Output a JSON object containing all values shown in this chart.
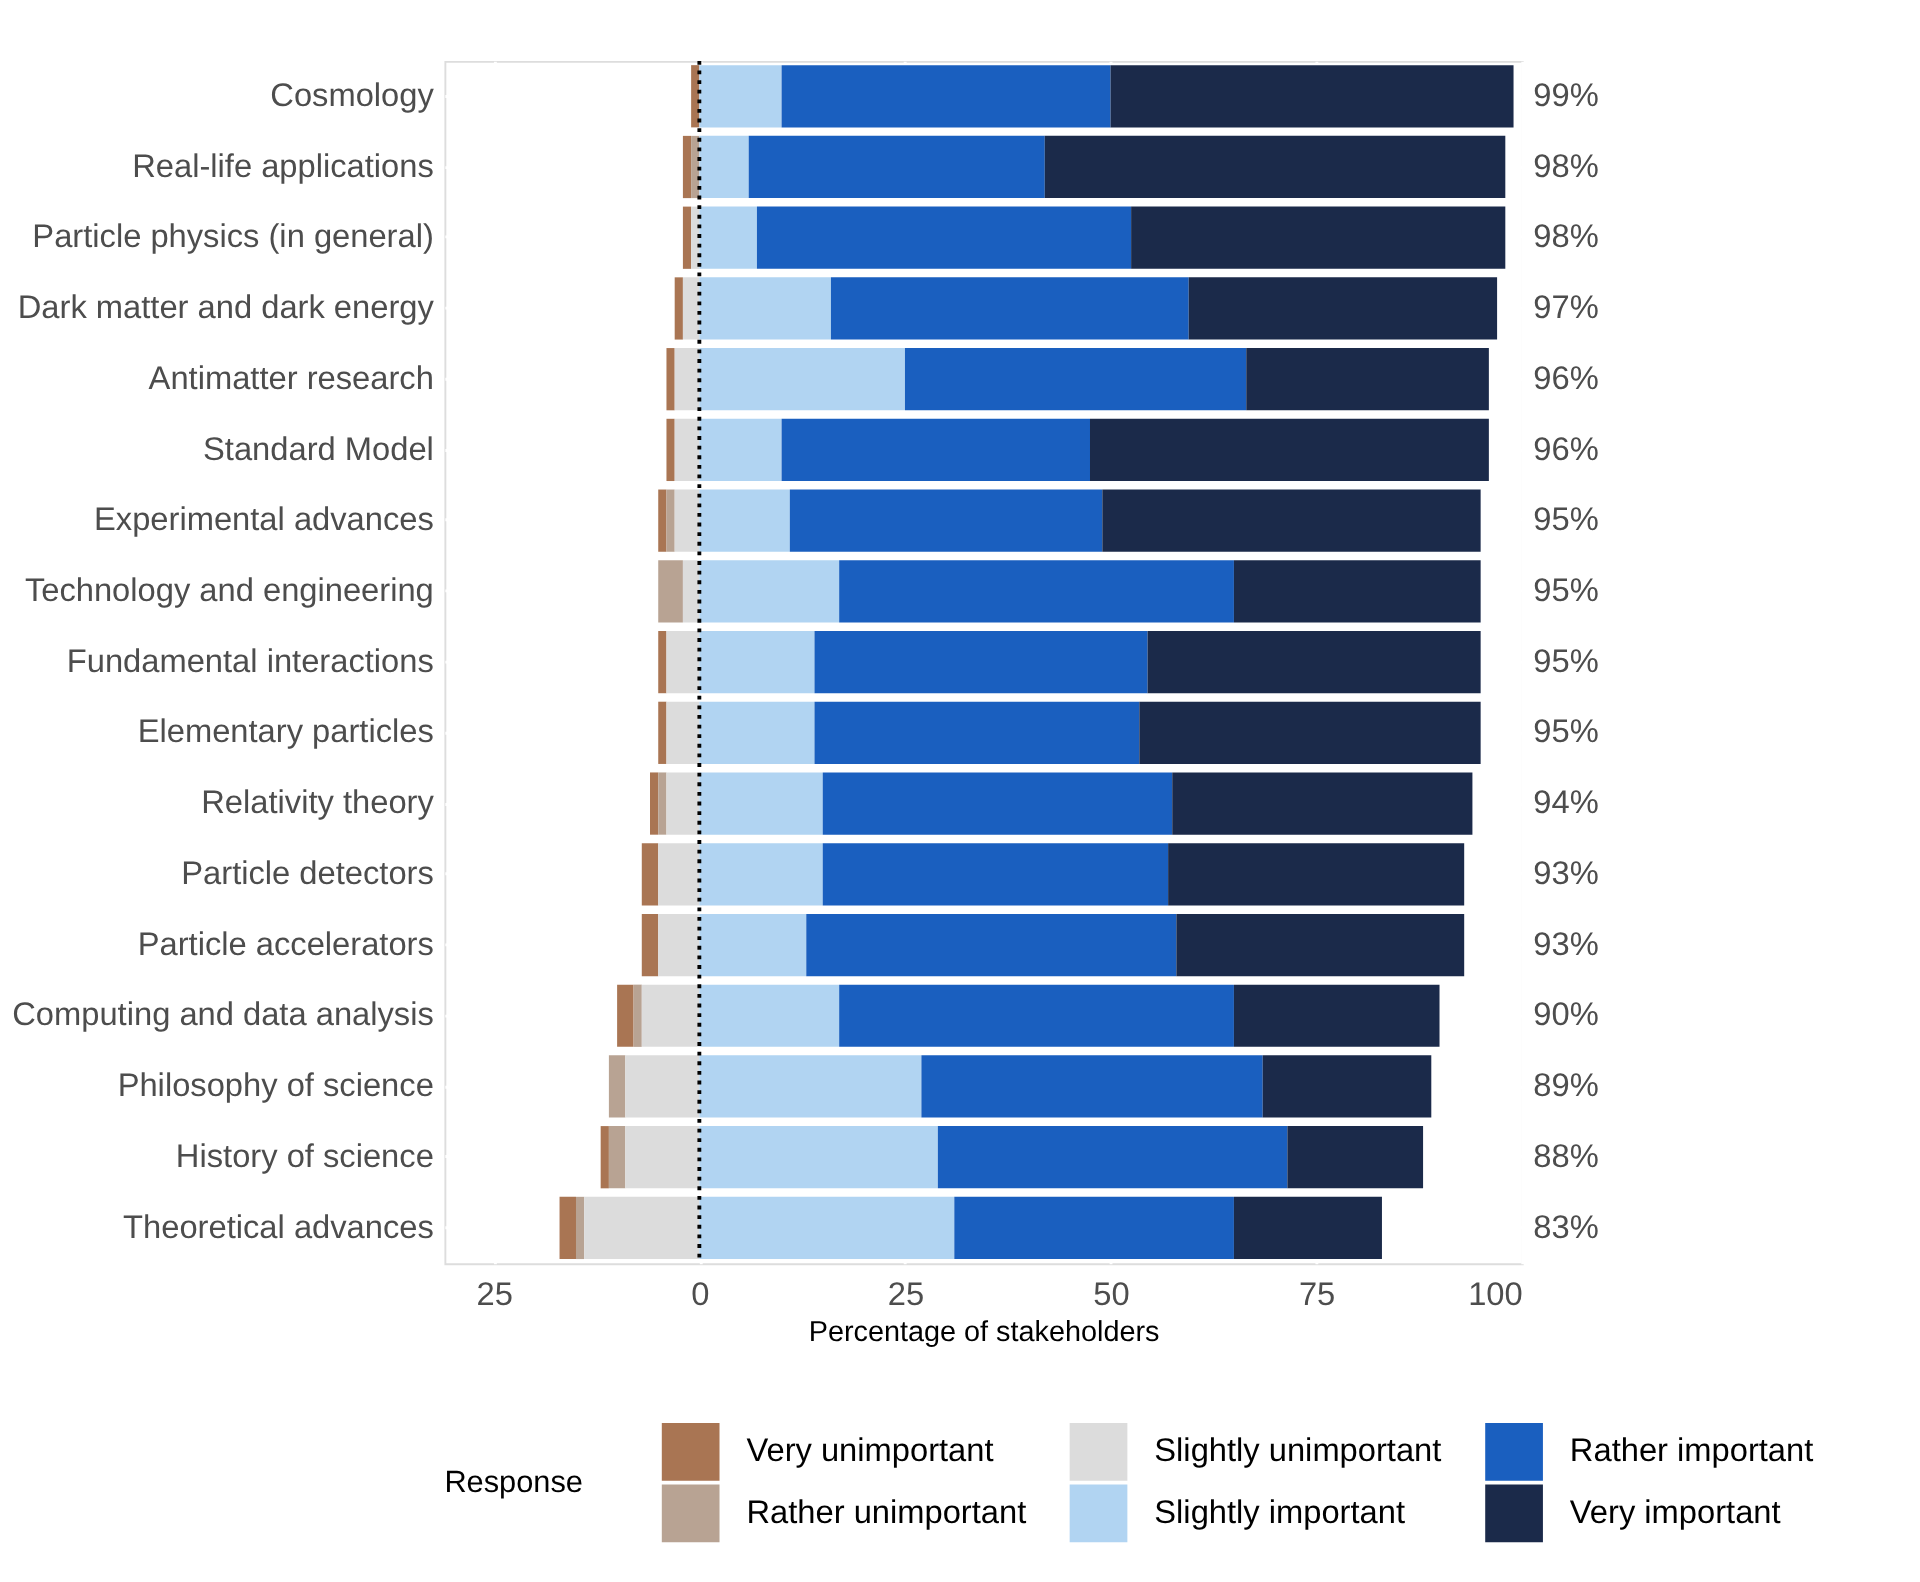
{
  "chart_data": {
    "type": "bar",
    "orientation": "horizontal",
    "stacked": true,
    "categories": [
      "Cosmology",
      "Real-life applications",
      "Particle physics (in general)",
      "Dark matter and dark energy",
      "Antimatter research",
      "Standard Model",
      "Experimental advances",
      "Technology and engineering",
      "Fundamental interactions",
      "Elementary particles",
      "Relativity theory",
      "Particle detectors",
      "Particle accelerators",
      "Computing and data analysis",
      "Philosophy of science",
      "History of science",
      "Theoretical advances"
    ],
    "series": [
      {
        "name": "Very unimportant",
        "color": "#a97553",
        "values": [
          -1,
          -1,
          -1,
          -1,
          -1,
          -1,
          -1,
          0,
          -1,
          -1,
          -1,
          -2,
          -2,
          -2,
          0,
          -1,
          -2
        ]
      },
      {
        "name": "Rather unimportant",
        "color": "#b8a393",
        "values": [
          0,
          -1,
          0,
          0,
          0,
          0,
          -1,
          -3,
          0,
          0,
          -1,
          0,
          0,
          -1,
          -2,
          -2,
          -1
        ]
      },
      {
        "name": "Slightly unimportant",
        "color": "#dcdcdc",
        "values": [
          0,
          0,
          -1,
          -2,
          -3,
          -3,
          -3,
          -2,
          -4,
          -4,
          -4,
          -5,
          -5,
          -7,
          -9,
          -9,
          -14
        ]
      },
      {
        "name": "Slightly important",
        "color": "#b1d4f2",
        "values": [
          10,
          6,
          7,
          16,
          25,
          10,
          11,
          17,
          14,
          14,
          15,
          15,
          13,
          17,
          27,
          29,
          31
        ]
      },
      {
        "name": "Rather important",
        "color": "#1a5fbf",
        "values": [
          40,
          36,
          45.5,
          43.5,
          41.5,
          37.5,
          38,
          48,
          40.5,
          39.5,
          42.5,
          42,
          45,
          48,
          41.5,
          42.5,
          34
        ]
      },
      {
        "name": "Very important",
        "color": "#1b2a4a",
        "values": [
          49,
          56,
          45.5,
          37.5,
          29.5,
          48.5,
          46,
          30,
          40.5,
          41.5,
          36.5,
          36,
          35,
          25,
          20.5,
          16.5,
          18
        ]
      }
    ],
    "annotations": [
      "99%",
      "98%",
      "98%",
      "97%",
      "96%",
      "96%",
      "95%",
      "95%",
      "95%",
      "95%",
      "94%",
      "93%",
      "93%",
      "90%",
      "89%",
      "88%",
      "83%"
    ],
    "xlim": [
      -31,
      100
    ],
    "xticks": [
      {
        "value": -25,
        "label": "25"
      },
      0,
      25,
      50,
      75,
      100
    ],
    "xlabel": "Percentage of stakeholders",
    "legend_title": "Response",
    "legend": "bottom",
    "grid": true,
    "ref_lines": [
      {
        "axis": "x",
        "value": 0,
        "label": null,
        "color": "#000000",
        "line_style": "dotted"
      }
    ]
  }
}
